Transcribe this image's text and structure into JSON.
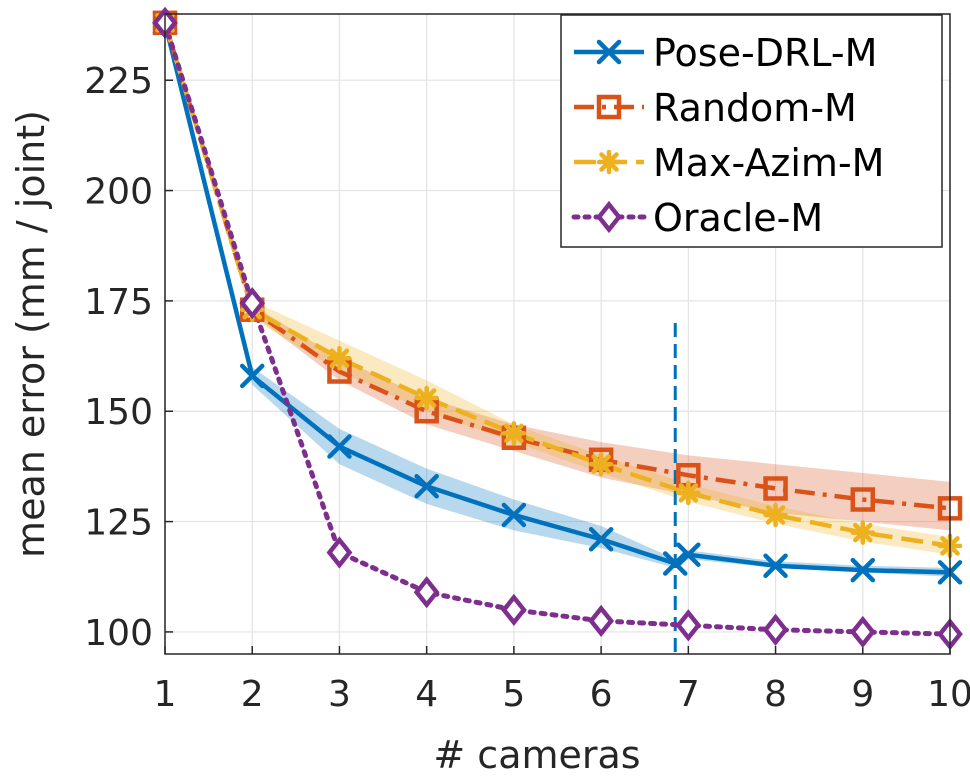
{
  "chart_data": {
    "type": "line",
    "title": "",
    "xlabel": "# cameras",
    "ylabel": "mean error (mm / joint)",
    "xlim": [
      1,
      10
    ],
    "ylim": [
      95,
      240
    ],
    "xticks": [
      "1",
      "2",
      "3",
      "4",
      "5",
      "6",
      "7",
      "8",
      "9",
      "10"
    ],
    "yticks": [
      "100",
      "125",
      "150",
      "175",
      "200",
      "225"
    ],
    "grid": true,
    "legend_position": "top-right",
    "vline": {
      "x": 6.85,
      "style": "dashed",
      "color": "#0072BD"
    },
    "series": [
      {
        "name": "Pose-DRL-M",
        "color": "#0072BD",
        "line": "solid",
        "marker": "x",
        "x": [
          1,
          2,
          3,
          4,
          5,
          6,
          6.85,
          7,
          8,
          9,
          10
        ],
        "values": [
          238,
          158,
          142,
          133,
          126.5,
          121,
          115.5,
          117.5,
          115,
          114,
          113.5
        ],
        "band_lower": [
          238,
          156,
          138,
          129,
          123,
          119,
          114.5,
          116.5,
          114.5,
          113.5,
          112.5
        ],
        "band_upper": [
          238,
          160,
          146,
          137,
          130,
          124,
          116.5,
          118.5,
          116,
          115,
          114.5
        ]
      },
      {
        "name": "Random-M",
        "color": "#D95319",
        "line": "dashdot",
        "marker": "square",
        "x": [
          1,
          2,
          3,
          4,
          5,
          6,
          7,
          8,
          9,
          10
        ],
        "values": [
          238,
          173,
          159,
          150,
          144,
          139,
          135.5,
          132.5,
          130,
          128
        ],
        "band_lower": [
          238,
          172,
          157,
          147,
          141,
          135,
          131,
          127,
          125,
          123
        ],
        "band_upper": [
          238,
          174,
          162,
          153,
          147,
          143,
          140,
          138,
          136,
          134
        ]
      },
      {
        "name": "Max-Azim-M",
        "color": "#EDB120",
        "line": "dashed",
        "marker": "asterisk",
        "x": [
          1,
          2,
          3,
          4,
          5,
          6,
          7,
          8,
          9,
          10
        ],
        "values": [
          238,
          173,
          162,
          153,
          145,
          138,
          131.5,
          126.5,
          122.5,
          119.5
        ],
        "band_lower": [
          238,
          171,
          159,
          150,
          143,
          136,
          129.5,
          124.5,
          120.5,
          117.5
        ],
        "band_upper": [
          238,
          175,
          166,
          157,
          147,
          140,
          133.5,
          128.5,
          124.5,
          121.5
        ]
      },
      {
        "name": "Oracle-M",
        "color": "#7E2F8E",
        "line": "dotted",
        "marker": "diamond",
        "x": [
          1,
          2,
          3,
          4,
          5,
          6,
          7,
          8,
          9,
          10
        ],
        "values": [
          238,
          174.5,
          118,
          109,
          105,
          102.5,
          101.5,
          100.5,
          100,
          99.5
        ]
      }
    ]
  }
}
